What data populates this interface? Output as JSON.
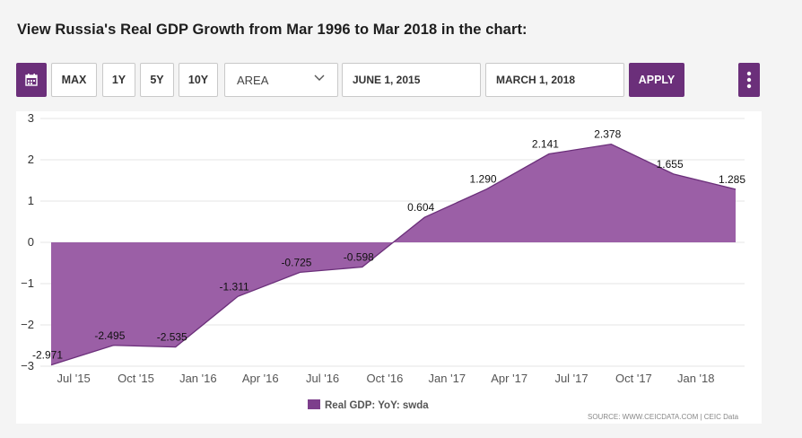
{
  "page": {
    "title": "View Russia's Real GDP Growth from Mar 1996 to Mar 2018 in the chart:"
  },
  "toolbar": {
    "calendar_icon": "calendar-icon",
    "range_buttons": [
      "MAX",
      "1Y",
      "5Y",
      "10Y"
    ],
    "chart_type": "AREA",
    "start_date": "JUNE 1, 2015",
    "end_date": "MARCH 1, 2018",
    "apply_label": "APPLY",
    "more_icon": "more-vertical-icon"
  },
  "colors": {
    "accent": "#6b2f7a",
    "area_fill": "#9b5fa6",
    "area_line": "#6b2f7a"
  },
  "chart_data": {
    "type": "area",
    "title": "",
    "xlabel": "",
    "ylabel": "",
    "ylim": [
      -3,
      3
    ],
    "yticks": [
      3,
      2,
      1,
      0,
      -1,
      -2,
      -3
    ],
    "grid": true,
    "x": [
      "Jun 2015",
      "Sep 2015",
      "Dec 2015",
      "Mar 2016",
      "Jun 2016",
      "Sep 2016",
      "Dec 2016",
      "Mar 2017",
      "Jun 2017",
      "Sep 2017",
      "Dec 2017",
      "Mar 2018"
    ],
    "series": [
      {
        "name": "Real GDP: YoY: swda",
        "values": [
          -2.971,
          -2.495,
          -2.535,
          -1.311,
          -0.725,
          -0.598,
          0.604,
          1.29,
          2.141,
          2.378,
          1.655,
          1.285
        ],
        "labels": [
          "-2.971",
          "-2.495",
          "-2.535",
          "-1.311",
          "-0.725",
          "-0.598",
          "0.604",
          "1.290",
          "2.141",
          "2.378",
          "1.655",
          "1.285"
        ]
      }
    ],
    "xtick_labels": [
      "Jul '15",
      "Oct '15",
      "Jan '16",
      "Apr '16",
      "Jul '16",
      "Oct '16",
      "Jan '17",
      "Apr '17",
      "Jul '17",
      "Oct '17",
      "Jan '18"
    ],
    "legend": {
      "position": "bottom-center",
      "label": "Real GDP: YoY: swda"
    },
    "source": "SOURCE: WWW.CEICDATA.COM | CEIC Data"
  }
}
